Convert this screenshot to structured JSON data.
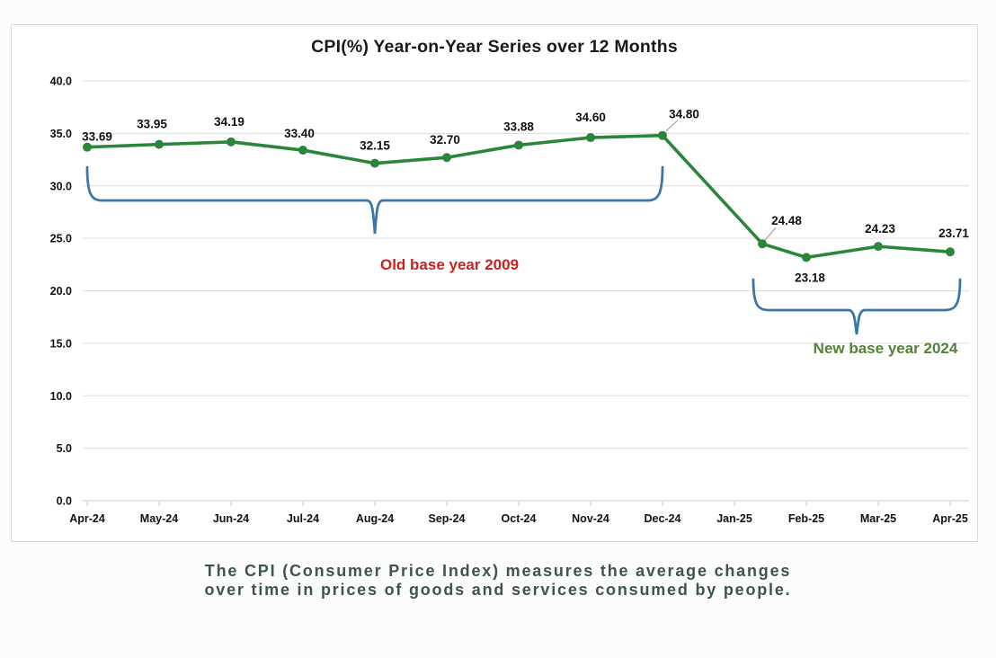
{
  "chart_data": {
    "type": "line",
    "title": "CPI(%) Year-on-Year Series over 12 Months",
    "categories": [
      "Apr-24",
      "May-24",
      "Jun-24",
      "Jul-24",
      "Aug-24",
      "Sep-24",
      "Oct-24",
      "Nov-24",
      "Dec-24",
      "Jan-25",
      "Feb-25",
      "Mar-25",
      "Apr-25"
    ],
    "series": [
      {
        "name": "CPI (%) Year-on-Year",
        "color": "#2b8639",
        "values": [
          33.69,
          33.95,
          34.19,
          33.4,
          32.15,
          32.7,
          33.88,
          34.6,
          34.8,
          24.48,
          23.18,
          24.23,
          23.71
        ]
      }
    ],
    "xlabel": "",
    "ylabel": "",
    "ylim": [
      0,
      40
    ],
    "ytick_step": 5,
    "y_ticks": [
      "0.0",
      "5.0",
      "10.0",
      "15.0",
      "20.0",
      "25.0",
      "30.0",
      "35.0",
      "40.0"
    ],
    "grid": true,
    "legend": "none",
    "data_labels_decimals": 2,
    "annotations": [
      {
        "text": "Old base year 2009",
        "color": "#cc2020",
        "span": [
          "Apr-24",
          "Dec-24"
        ],
        "brace_color": "#3a76a8"
      },
      {
        "text": "New base year 2024",
        "color": "#538135",
        "span": [
          "Jan-25",
          "Apr-25"
        ],
        "brace_color": "#3a76a8"
      }
    ]
  },
  "caption": {
    "line1": "The CPI (Consumer Price Index) measures the average changes",
    "line2": "over time in prices of goods and services consumed by people.",
    "color": "#3d5452"
  }
}
